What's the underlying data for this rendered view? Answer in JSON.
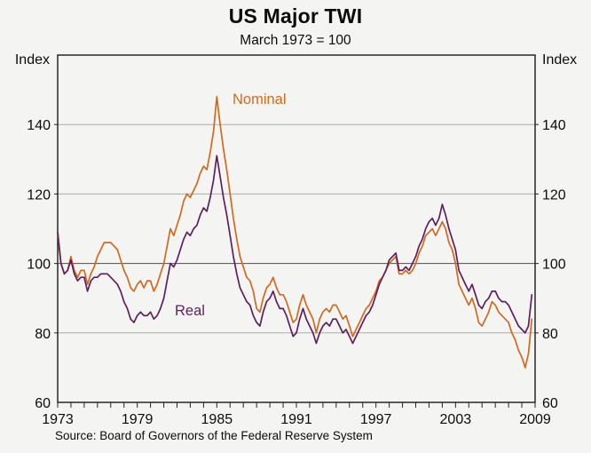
{
  "header": {
    "title": "US Major TWI",
    "subtitle": "March 1973 = 100"
  },
  "footer": {
    "source": "Source: Board of Governors of the Federal Reserve System"
  },
  "chart_data": {
    "type": "line",
    "title": "US Major TWI",
    "subtitle": "March 1973 = 100",
    "ylabel_left": "Index",
    "ylabel_right": "Index",
    "ylim": [
      60,
      160
    ],
    "yticks": [
      60,
      80,
      100,
      120,
      140
    ],
    "reference_line": 100,
    "grid": "horizontal",
    "xlim": [
      1973,
      2009
    ],
    "xtick_labels": [
      "1973",
      "1979",
      "1985",
      "1991",
      "1997",
      "2003",
      "2009"
    ],
    "xtick_years": [
      1973,
      1979,
      1985,
      1991,
      1997,
      2003,
      2009
    ],
    "x_minor_tick_step_years": 1,
    "x_start": 1973.0,
    "x_step": 0.25,
    "colors": {
      "nominal": "#D2691E",
      "real": "#5F1F5C",
      "gridline": "#ABABAB",
      "reference_gridline": "#4D4D4D",
      "frame": "#262626",
      "text": "#0B0B0B"
    },
    "series": [
      {
        "name": "Nominal",
        "color": "#D2691E",
        "values": [
          109,
          100,
          97,
          98,
          102,
          98,
          96,
          98,
          98,
          94,
          97,
          99,
          102,
          104,
          106,
          106,
          106,
          105,
          104,
          101,
          98,
          96,
          93,
          92,
          94,
          95,
          93,
          95,
          95,
          92,
          94,
          97,
          100,
          105,
          110,
          108,
          111,
          114,
          118,
          120,
          119,
          121,
          123,
          126,
          128,
          127,
          132,
          138,
          148,
          140,
          133,
          127,
          120,
          113,
          107,
          102,
          99,
          96,
          95,
          92,
          87,
          86,
          90,
          93,
          94,
          96,
          93,
          91,
          91,
          89,
          86,
          83,
          84,
          88,
          91,
          88,
          86,
          84,
          80,
          84,
          86,
          87,
          86,
          88,
          88,
          86,
          84,
          85,
          82,
          79,
          81,
          83,
          85,
          87,
          88,
          90,
          92,
          95,
          96,
          98,
          100,
          101,
          102,
          97,
          97,
          98,
          97,
          98,
          100,
          103,
          105,
          108,
          109,
          110,
          108,
          110,
          112,
          110,
          106,
          104,
          100,
          94,
          92,
          90,
          88,
          90,
          87,
          83,
          82,
          84,
          86,
          89,
          88,
          86,
          85,
          84,
          83,
          80,
          78,
          75,
          73,
          70,
          74,
          84
        ]
      },
      {
        "name": "Real",
        "color": "#5F1F5C",
        "values": [
          109,
          100,
          97,
          98,
          101,
          97,
          95,
          96,
          96,
          92,
          95,
          96,
          96,
          97,
          97,
          97,
          96,
          95,
          94,
          92,
          89,
          87,
          84,
          83,
          85,
          86,
          85,
          85,
          86,
          84,
          85,
          87,
          90,
          95,
          100,
          99,
          101,
          104,
          107,
          109,
          108,
          110,
          111,
          114,
          116,
          115,
          119,
          124,
          131,
          125,
          119,
          114,
          108,
          102,
          97,
          93,
          91,
          89,
          88,
          85,
          83,
          82,
          86,
          89,
          90,
          92,
          89,
          87,
          87,
          85,
          82,
          79,
          80,
          84,
          87,
          84,
          82,
          80,
          77,
          80,
          82,
          83,
          82,
          84,
          84,
          82,
          80,
          81,
          79,
          77,
          79,
          81,
          83,
          85,
          86,
          88,
          91,
          94,
          96,
          98,
          101,
          102,
          103,
          98,
          98,
          99,
          98,
          100,
          102,
          105,
          107,
          110,
          112,
          113,
          111,
          113,
          117,
          114,
          110,
          107,
          104,
          98,
          96,
          94,
          92,
          94,
          91,
          88,
          87,
          89,
          90,
          92,
          92,
          90,
          89,
          89,
          88,
          86,
          84,
          82,
          81,
          80,
          82,
          91
        ]
      }
    ],
    "source": "Source: Board of Governors of the Federal Reserve System"
  }
}
